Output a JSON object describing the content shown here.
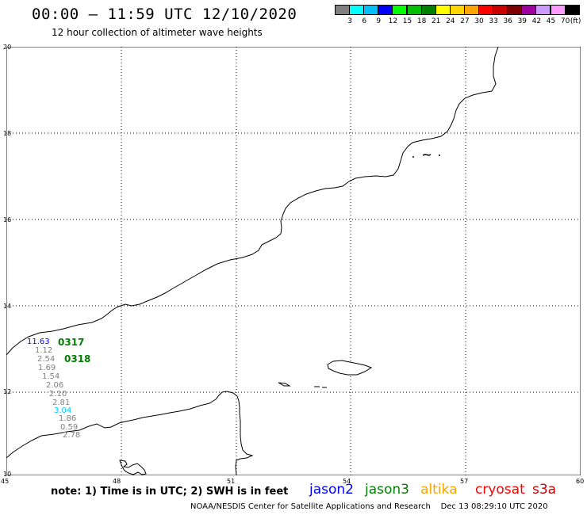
{
  "header": {
    "title": "00:00 – 11:59 UTC 12/10/2020",
    "subtitle": "12 hour collection of altimeter wave heights"
  },
  "colorbar": {
    "colors": [
      "#808080",
      "#00ffff",
      "#00bfff",
      "#0000ff",
      "#00ff00",
      "#00c000",
      "#008000",
      "#ffff00",
      "#ffd700",
      "#ffa500",
      "#ff0000",
      "#cc0000",
      "#800000",
      "#a000a0",
      "#cc99ff",
      "#ff99ff",
      "#000000"
    ],
    "labels": [
      "3",
      "6",
      "9",
      "12",
      "15",
      "18",
      "21",
      "24",
      "27",
      "30",
      "33",
      "36",
      "39",
      "42",
      "45",
      "70"
    ],
    "unit": "(ft)"
  },
  "axes": {
    "lon_labels": [
      "45",
      "48",
      "51",
      "54",
      "57",
      "60"
    ],
    "lat_labels": [
      "20",
      "18",
      "16",
      "14",
      "12",
      "10"
    ]
  },
  "observations": {
    "values": [
      "11.63",
      "1.12",
      "2.54",
      "1.69",
      "1.54",
      "2.06",
      "2.10",
      "2.81",
      "3.04",
      "1.86",
      "0.59",
      "2.78"
    ],
    "colors": [
      "#0000ff",
      "#808080",
      "#808080",
      "#808080",
      "#808080",
      "#808080",
      "#808080",
      "#808080",
      "#00c8ff",
      "#808080",
      "#808080",
      "#808080"
    ],
    "passes": [
      "0317",
      "0318"
    ],
    "pass_color": "#008000"
  },
  "footer": {
    "note": "note: 1) Time is in UTC; 2) SWH is in feet",
    "credit": "NOAA/NESDIS Center for Satellite Applications and Research",
    "timestamp": "Dec 13 08:29:10 UTC 2020"
  },
  "satellites": [
    {
      "name": "jason2",
      "color": "#0000ff"
    },
    {
      "name": "jason3",
      "color": "#008000"
    },
    {
      "name": "altika",
      "color": "#ffa500"
    },
    {
      "name": "cryosat",
      "color": "#ff0000"
    },
    {
      "name": "s3a",
      "color": "#cc0000"
    }
  ]
}
